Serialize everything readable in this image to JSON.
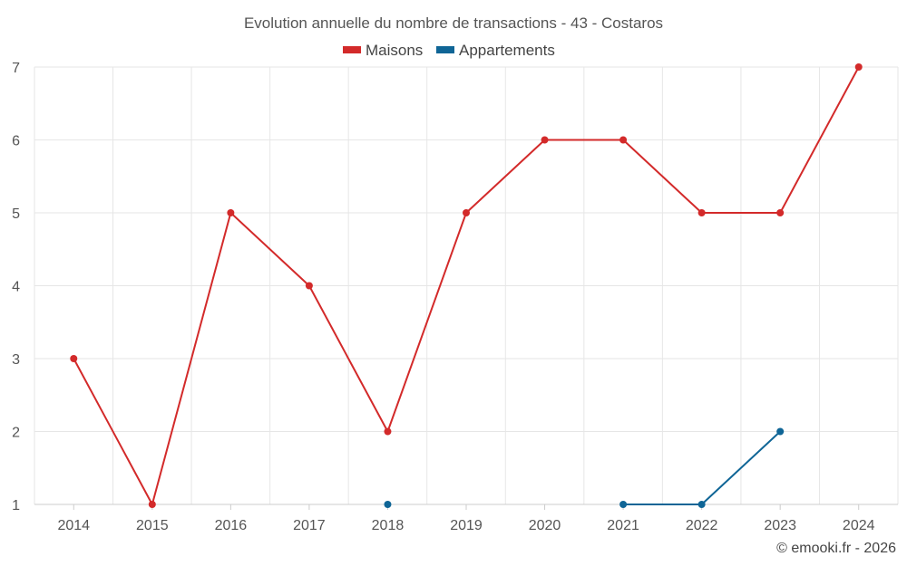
{
  "chart_data": {
    "type": "line",
    "title": "Evolution annuelle du nombre de transactions - 43 - Costaros",
    "x": [
      "2014",
      "2015",
      "2016",
      "2017",
      "2018",
      "2019",
      "2020",
      "2021",
      "2022",
      "2023",
      "2024"
    ],
    "series": [
      {
        "name": "Maisons",
        "color": "#d32a2a",
        "values": [
          3,
          1,
          5,
          4,
          2,
          5,
          6,
          6,
          5,
          5,
          7
        ]
      },
      {
        "name": "Appartements",
        "color": "#0f6596",
        "values": [
          null,
          null,
          null,
          null,
          1,
          null,
          null,
          1,
          1,
          2,
          null
        ]
      }
    ],
    "ylim": [
      1,
      7
    ],
    "yticks": [
      "1",
      "2",
      "3",
      "4",
      "5",
      "6",
      "7"
    ],
    "xlabel": "",
    "ylabel": "",
    "grid": true,
    "legend_position": "top-center",
    "credit": "© emooki.fr - 2026"
  }
}
